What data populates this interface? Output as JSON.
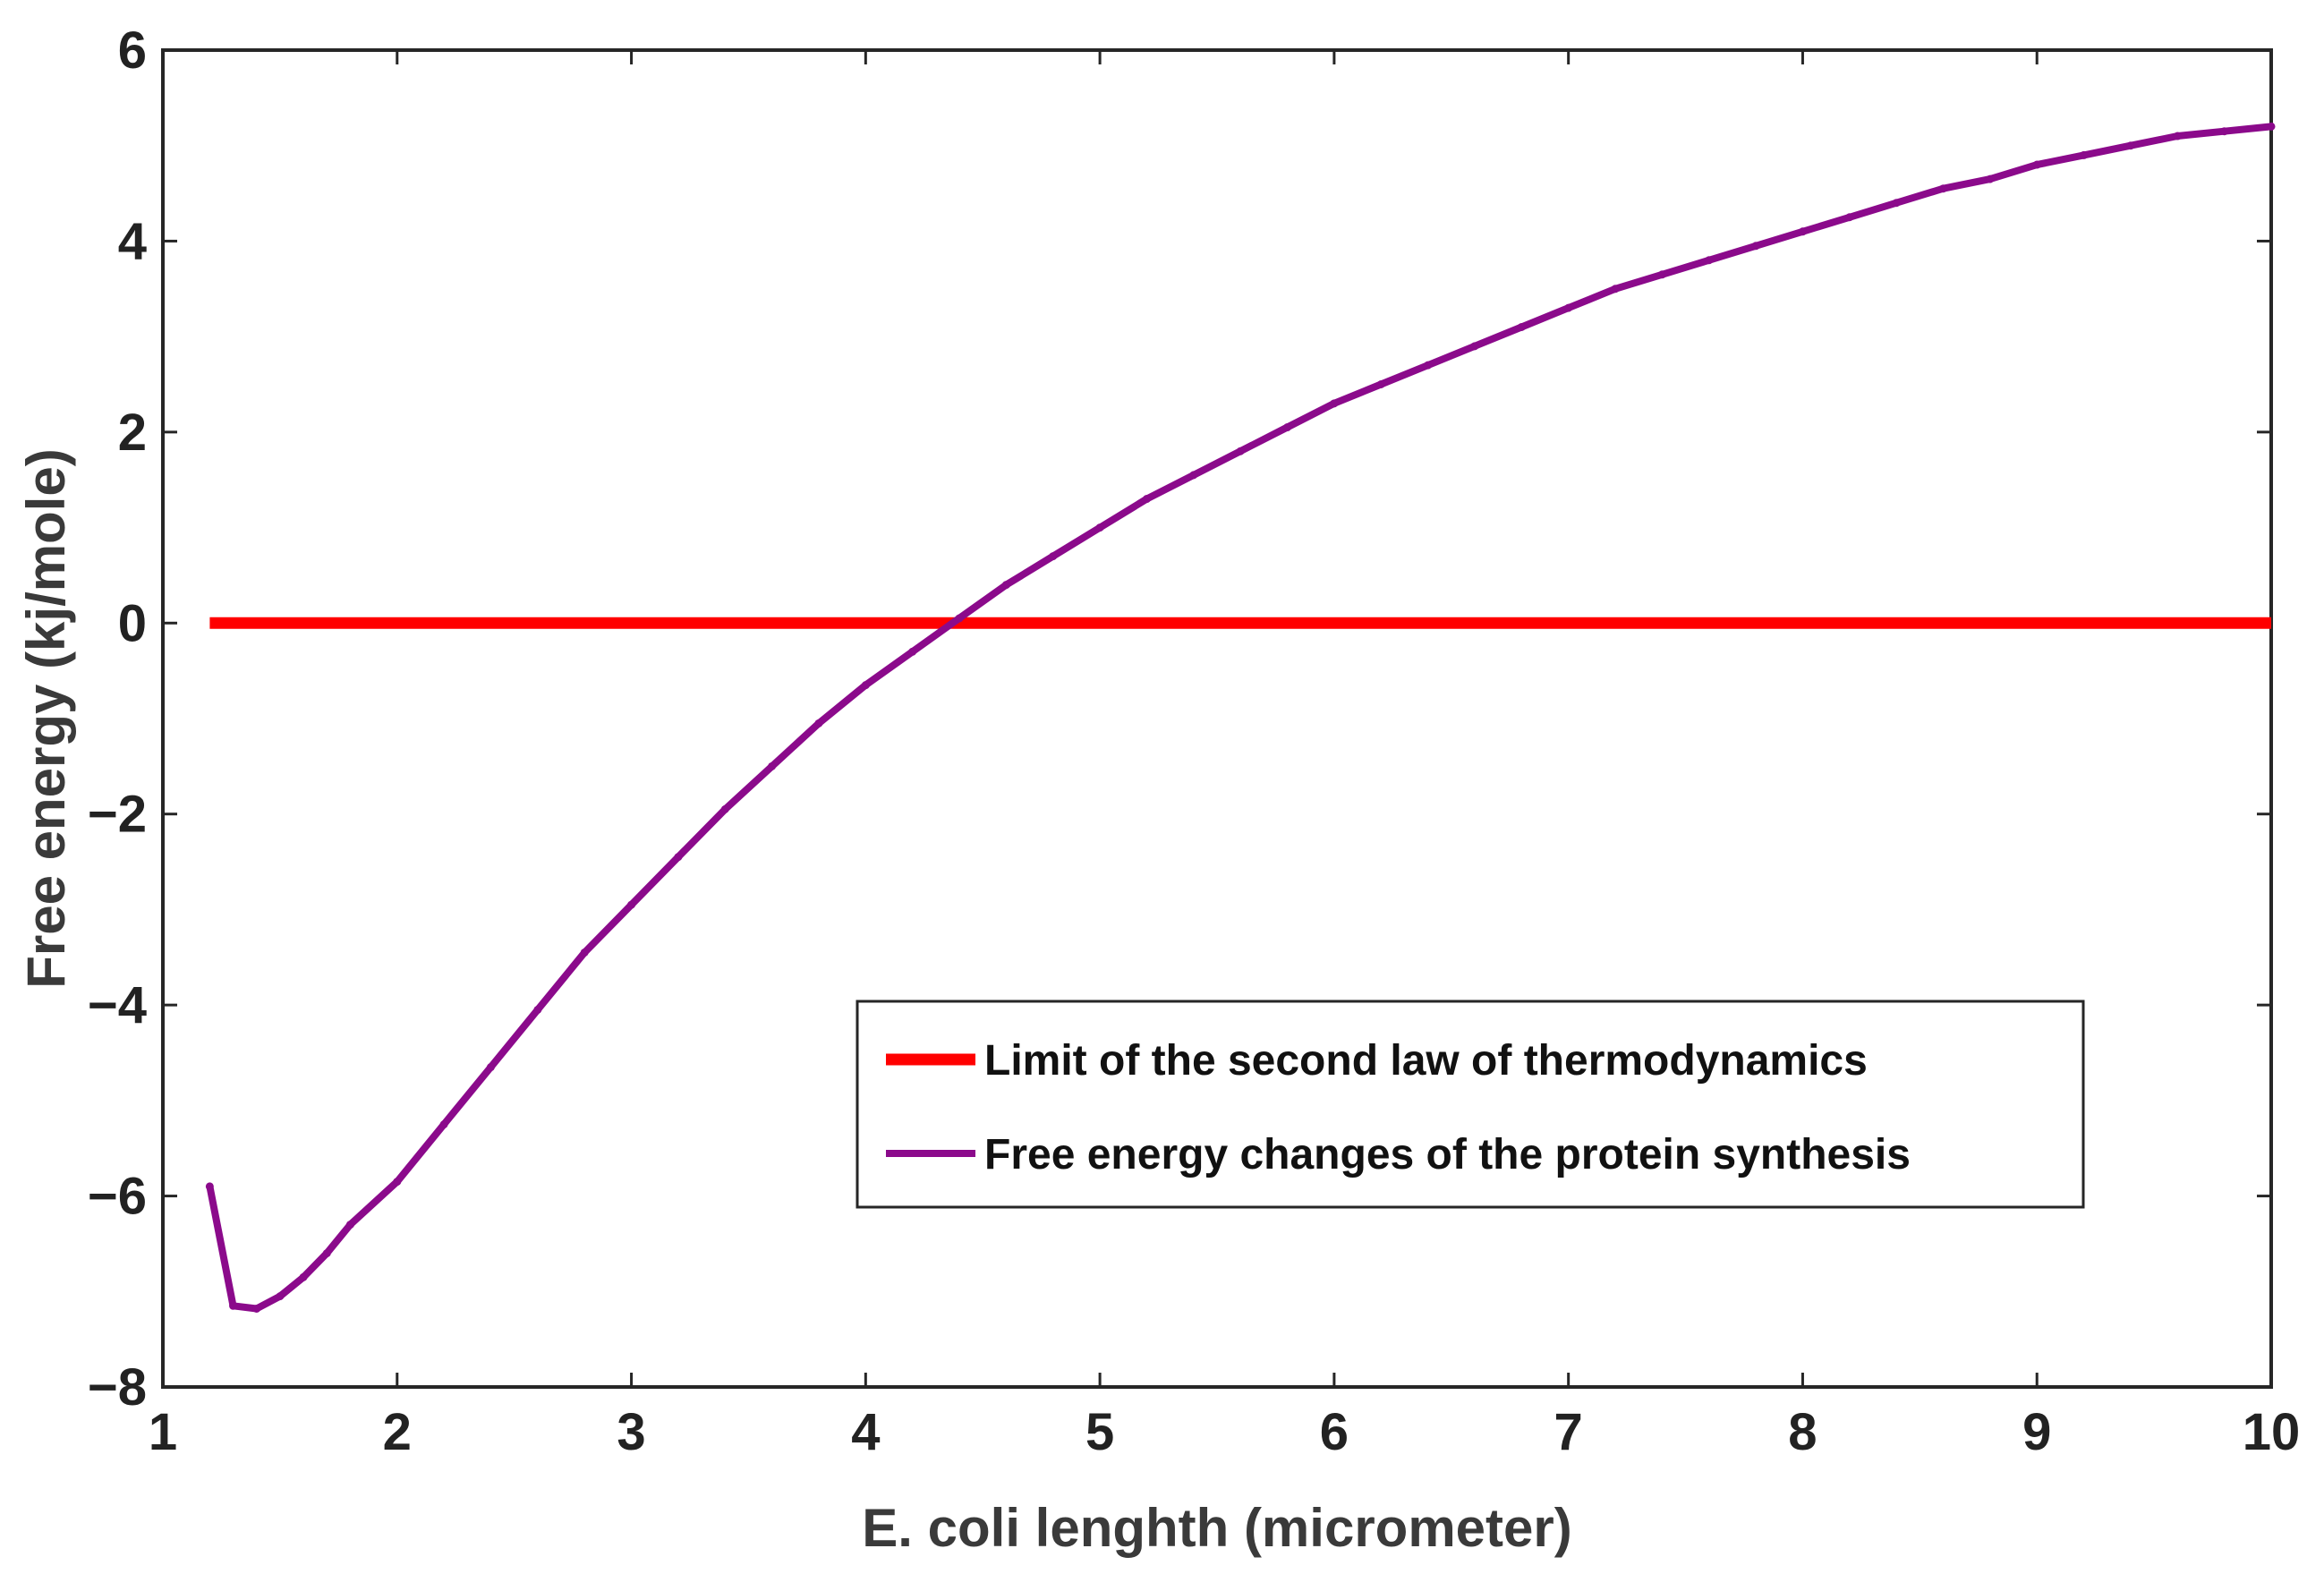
{
  "chart_data": {
    "type": "line",
    "title": "",
    "xlabel": "E. coli lenghth (micrometer)",
    "ylabel": "Free energy (kj/mole)",
    "xlim": [
      1,
      10
    ],
    "ylim": [
      -8,
      6
    ],
    "xticks": [
      1,
      2,
      3,
      4,
      5,
      6,
      7,
      8,
      9,
      10
    ],
    "yticks": [
      6,
      4,
      2,
      0,
      -2,
      -4,
      -6,
      -8
    ],
    "xtick_labels": [
      "1",
      "2",
      "3",
      "4",
      "5",
      "6",
      "7",
      "8",
      "9",
      "10"
    ],
    "ytick_labels": [
      "6",
      "4",
      "2",
      "0",
      "−2",
      "−4",
      "−6",
      "−8"
    ],
    "grid": false,
    "legend_position": "lower-right",
    "series": [
      {
        "name": "Limit of the second law of thermodynamics",
        "color": "#ff0000",
        "x": [
          1.2,
          10
        ],
        "y": [
          0,
          0
        ]
      },
      {
        "name": "Free energy changes of the protein synthesis",
        "color": "#8b0a8b",
        "x": [
          1.2,
          1.3,
          1.4,
          1.5,
          1.6,
          1.7,
          1.8,
          2.0,
          2.2,
          2.4,
          2.6,
          2.8,
          3.0,
          3.2,
          3.4,
          3.6,
          3.8,
          4.0,
          4.2,
          4.4,
          4.6,
          4.8,
          5.0,
          5.2,
          5.4,
          5.6,
          5.8,
          6.0,
          6.2,
          6.4,
          6.6,
          6.8,
          7.0,
          7.2,
          7.4,
          7.6,
          7.8,
          8.0,
          8.2,
          8.4,
          8.6,
          8.8,
          9.0,
          9.2,
          9.4,
          9.6,
          9.8,
          10.0
        ],
        "y": [
          -5.9,
          -7.15,
          -7.18,
          -7.05,
          -6.85,
          -6.6,
          -6.3,
          -5.85,
          -5.25,
          -4.65,
          -4.05,
          -3.45,
          -2.95,
          -2.45,
          -1.95,
          -1.5,
          -1.05,
          -0.65,
          -0.3,
          0.05,
          0.4,
          0.7,
          1.0,
          1.3,
          1.55,
          1.8,
          2.05,
          2.3,
          2.5,
          2.7,
          2.9,
          3.1,
          3.3,
          3.5,
          3.65,
          3.8,
          3.95,
          4.1,
          4.25,
          4.4,
          4.55,
          4.65,
          4.8,
          4.9,
          5.0,
          5.1,
          5.15,
          5.2
        ]
      }
    ]
  }
}
